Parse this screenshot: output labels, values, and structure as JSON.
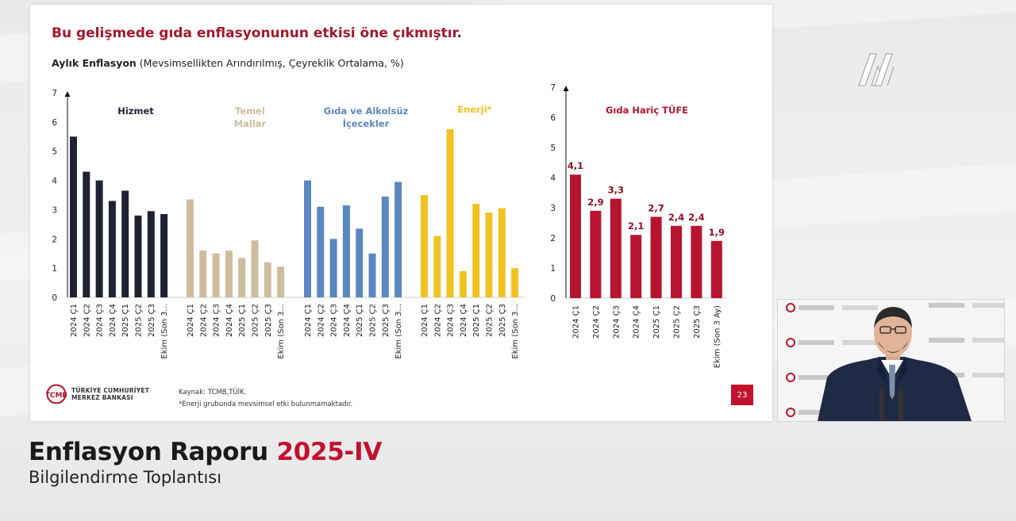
{
  "slide": {
    "title": "Bu gelişmede gıda enflasyonunun etkisi öne çıkmıştır.",
    "subtitle_bold": "Aylık Enflasyon",
    "subtitle_rest": " (Mevsimsellikten Arındırılmış, Çeyreklik Ortalama, %)",
    "source": "Kaynak: TCMB,TÜİK.",
    "footnote": "*Enerji grubunda mevsimsel etki bulunmamaktadır.",
    "page_number": "23",
    "logo_line1": "TÜRKİYE CUMHURİYET",
    "logo_line2": "MERKEZ BANKASI",
    "logo_mark": "TCMB"
  },
  "broadcast": {
    "title_main": "Enflasyon Raporu ",
    "title_accent": "2025-IV",
    "subtitle": "Bilgilendirme Toplantısı",
    "agency_logo": "AA"
  },
  "colors": {
    "hizmet": "#1e2333",
    "temel_mallar": "#cdbd9c",
    "gida": "#5b87bf",
    "enerji": "#f1c320",
    "gida_haric": "#b7152f",
    "accent": "#c3112d"
  },
  "chart_data": [
    {
      "type": "bar",
      "ylim": [
        0,
        7
      ],
      "yticks": [
        "0",
        "1",
        "2",
        "3",
        "4",
        "5",
        "6",
        "7"
      ],
      "categories": [
        "2024 Ç1",
        "2024 Ç2",
        "2024 Ç3",
        "2024 Ç4",
        "2025 Ç1",
        "2025 Ç2",
        "2025 Ç3",
        "Ekim (Son 3..."
      ],
      "series": [
        {
          "name": "Hizmet",
          "color": "#1e2333",
          "values": [
            5.5,
            4.3,
            4.0,
            3.3,
            3.65,
            2.8,
            2.95,
            2.85
          ]
        },
        {
          "name": "Temel Mallar",
          "color": "#cdbd9c",
          "values": [
            3.35,
            1.6,
            1.5,
            1.6,
            1.35,
            1.95,
            1.2,
            1.05
          ]
        },
        {
          "name": "Gıda ve Alkolsüz İçecekler",
          "color": "#5b87bf",
          "values": [
            4.0,
            3.1,
            2.0,
            3.15,
            2.35,
            1.5,
            3.45,
            3.95
          ]
        },
        {
          "name": "Enerji*",
          "color": "#f1c320",
          "values": [
            3.5,
            2.1,
            5.75,
            0.9,
            3.2,
            2.9,
            3.05,
            1.0
          ]
        }
      ]
    },
    {
      "type": "bar",
      "ylim": [
        0,
        7
      ],
      "yticks": [
        "0",
        "1",
        "2",
        "3",
        "4",
        "5",
        "6",
        "7"
      ],
      "categories": [
        "2024 Ç1",
        "2024 Ç2",
        "2024 Ç3",
        "2024 Ç4",
        "2025 Ç1",
        "2025 Ç2",
        "2025 Ç3",
        "Ekim (Son 3 Ay)"
      ],
      "series": [
        {
          "name": "Gıda Hariç TÜFE",
          "color": "#b7152f",
          "values": [
            4.1,
            2.9,
            3.3,
            2.1,
            2.7,
            2.4,
            2.4,
            1.9
          ],
          "labels": [
            "4,1",
            "2,9",
            "3,3",
            "2,1",
            "2,7",
            "2,4",
            "2,4",
            "1,9"
          ]
        }
      ]
    }
  ]
}
